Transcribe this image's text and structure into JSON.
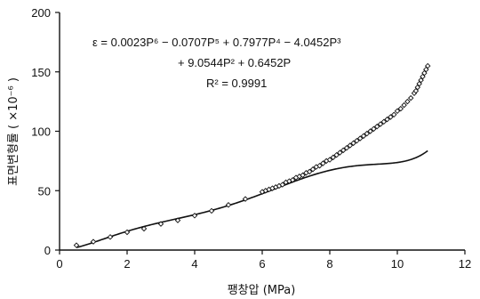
{
  "chart_data": {
    "type": "scatter",
    "title": "",
    "xlabel": "팽창압 (MPa)",
    "ylabel": "표면변형률 ( ×10⁻⁶ )",
    "xlim": [
      0,
      12
    ],
    "ylim": [
      0,
      200
    ],
    "x_ticks": [
      "0",
      "2",
      "4",
      "6",
      "8",
      "10",
      "12"
    ],
    "y_ticks": [
      "0",
      "50",
      "100",
      "150",
      "200"
    ],
    "grid": false,
    "annotation": {
      "equation_line1": "ε = 0.0023P⁶ − 0.0707P⁵ + 0.7977P⁴ − 4.0452P³",
      "equation_line2": "+ 9.0544P² + 0.6452P",
      "r_squared": "R² = 0.9991"
    },
    "fit_coefficients": {
      "P6": 0.0023,
      "P5": -0.0707,
      "P4": 0.7977,
      "P3": -4.0452,
      "P2": 9.0544,
      "P1": 0.6452
    },
    "series": [
      {
        "marker": "diamond",
        "x": [
          0.5,
          1.0,
          1.5,
          2.0,
          2.5,
          3.0,
          3.5,
          4.0,
          4.5,
          5.0,
          5.5,
          6.0,
          6.1,
          6.2,
          6.3,
          6.4,
          6.5,
          6.6,
          6.7,
          6.8,
          6.9,
          7.0,
          7.1,
          7.2,
          7.3,
          7.4,
          7.5,
          7.6,
          7.7,
          7.8,
          7.9,
          8.0,
          8.1,
          8.2,
          8.3,
          8.4,
          8.5,
          8.6,
          8.7,
          8.8,
          8.9,
          9.0,
          9.1,
          9.2,
          9.3,
          9.4,
          9.5,
          9.6,
          9.7,
          9.8,
          9.9,
          10.0,
          10.1,
          10.2,
          10.3,
          10.4,
          10.5,
          10.55,
          10.6,
          10.65,
          10.7,
          10.75,
          10.8,
          10.85,
          10.9
        ],
        "y": [
          4,
          7,
          11,
          15,
          18,
          22,
          25,
          29,
          33,
          38,
          43,
          49,
          50,
          51,
          52,
          53,
          54,
          55,
          57,
          58,
          59,
          61,
          62,
          63,
          65,
          66,
          68,
          70,
          71,
          73,
          75,
          76,
          78,
          80,
          82,
          84,
          86,
          88,
          90,
          92,
          94,
          96,
          98,
          100,
          102,
          104,
          106,
          108,
          110,
          112,
          114,
          117,
          119,
          122,
          125,
          128,
          132,
          134,
          137,
          140,
          143,
          146,
          149,
          152,
          155
        ]
      }
    ]
  }
}
